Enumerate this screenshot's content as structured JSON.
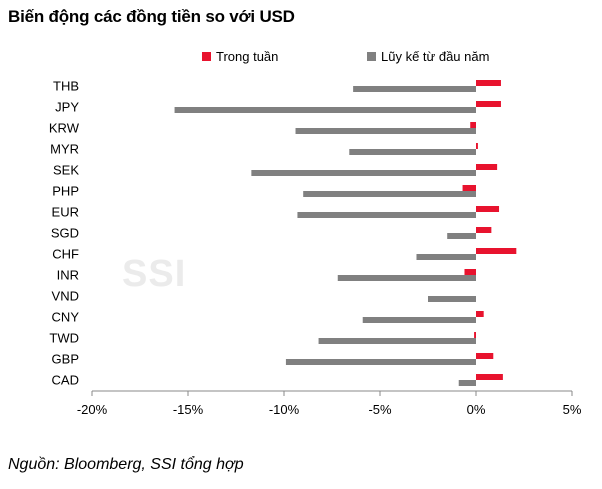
{
  "header": {
    "title": "Biến động các đồng tiền so với USD",
    "source": "Nguồn: Bloomberg, SSI tổng hợp",
    "watermark": "SSI"
  },
  "colors": {
    "weekly": "#e8132e",
    "ytd": "#808080"
  },
  "chart_data": {
    "type": "bar",
    "orientation": "horizontal",
    "title": "Biến động các đồng tiền so với USD",
    "categories": [
      "THB",
      "JPY",
      "KRW",
      "MYR",
      "SEK",
      "PHP",
      "EUR",
      "SGD",
      "CHF",
      "INR",
      "VND",
      "CNY",
      "TWD",
      "GBP",
      "CAD"
    ],
    "series": [
      {
        "name": "Trong tuần",
        "color": "#e8132e",
        "values": [
          1.3,
          1.3,
          -0.3,
          0.1,
          1.1,
          -0.7,
          1.2,
          0.8,
          2.1,
          -0.6,
          0.0,
          0.4,
          -0.1,
          0.9,
          1.4
        ]
      },
      {
        "name": "Lũy kế từ đầu năm",
        "color": "#808080",
        "values": [
          -6.4,
          -15.7,
          -9.4,
          -6.6,
          -11.7,
          -9.0,
          -9.3,
          -1.5,
          -3.1,
          -7.2,
          -2.5,
          -5.9,
          -8.2,
          -9.9,
          -0.9
        ]
      }
    ],
    "xlim": [
      -20,
      5
    ],
    "xticks": [
      -20,
      -15,
      -10,
      -5,
      0,
      5
    ],
    "xtick_labels": [
      "-20%",
      "-15%",
      "-10%",
      "-5%",
      "0%",
      "5%"
    ],
    "xlabel": "",
    "ylabel": "",
    "legend": "top"
  }
}
